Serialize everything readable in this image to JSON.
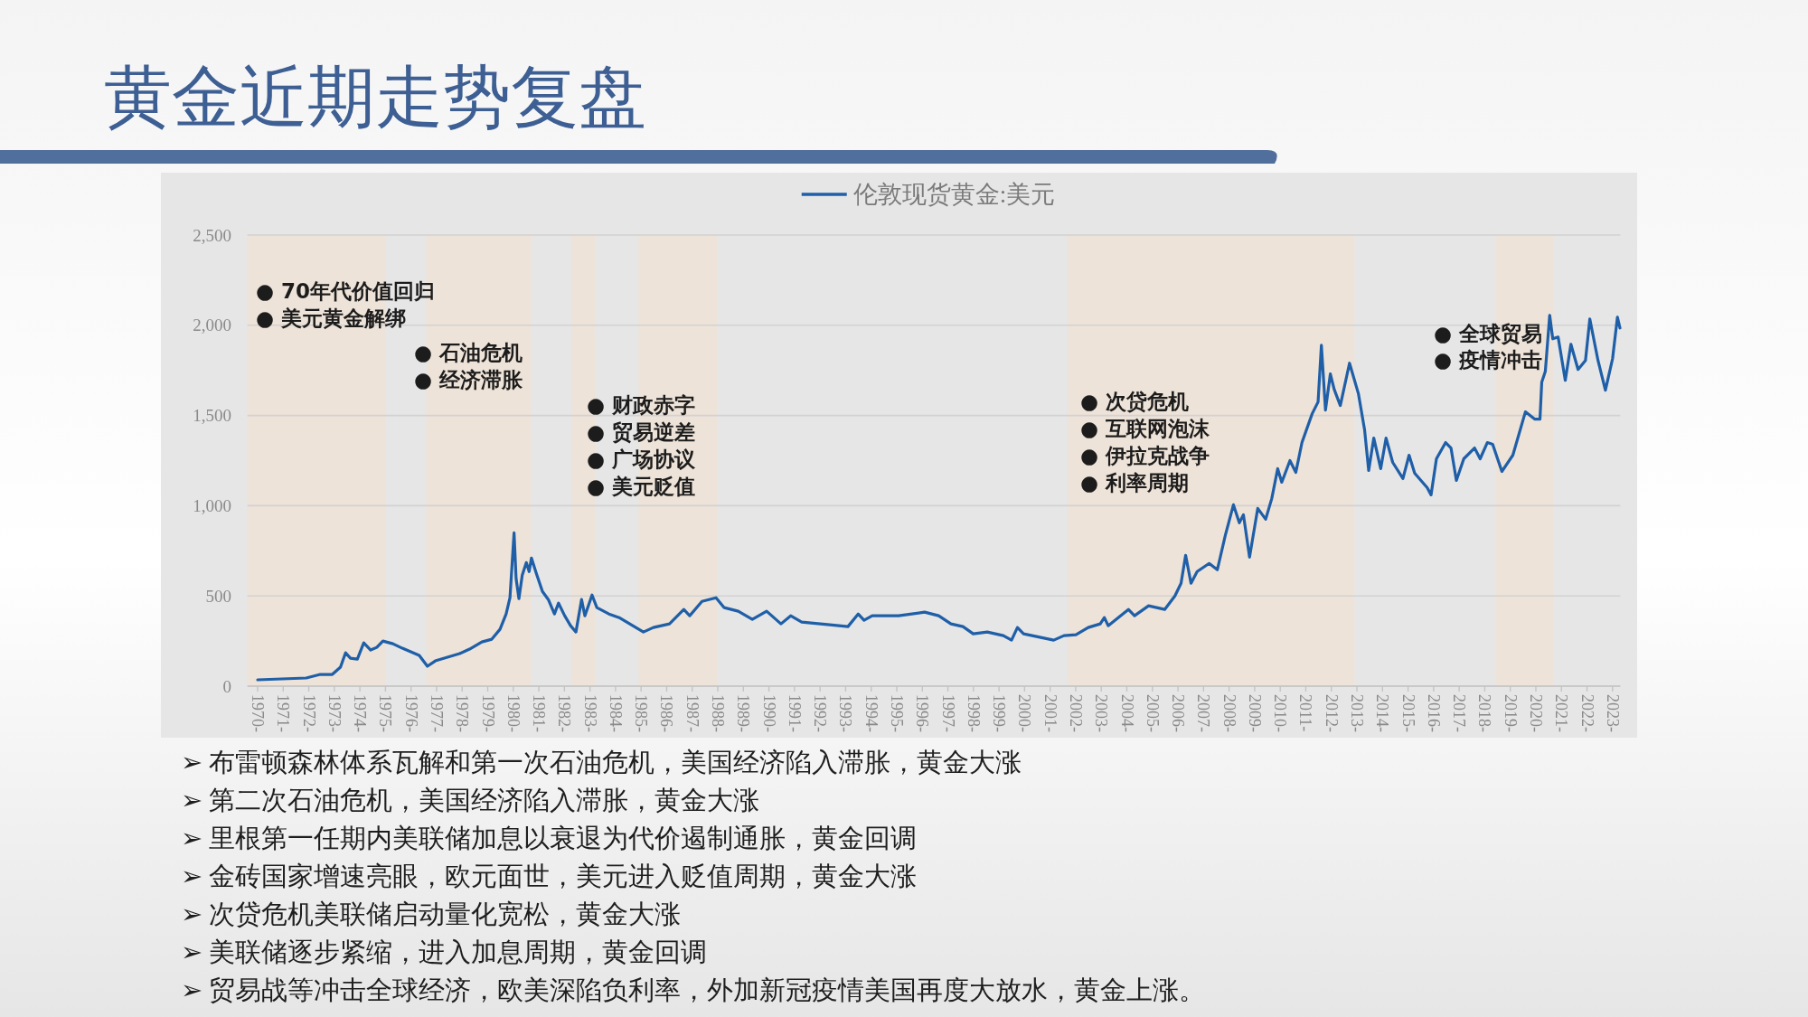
{
  "chart_data": {
    "type": "line",
    "title": "黄金近期走势复盘",
    "legend": "top",
    "grid": "y",
    "line_style": "solid",
    "xlim": [
      1969.6,
      2023.3
    ],
    "ylim": [
      0,
      2500
    ],
    "xticks": [
      {
        "value": 1970,
        "label": "1970-"
      },
      {
        "value": 1971,
        "label": "1971-"
      },
      {
        "value": 1972,
        "label": "1972-"
      },
      {
        "value": 1973,
        "label": "1973-"
      },
      {
        "value": 1974,
        "label": "1974-"
      },
      {
        "value": 1975,
        "label": "1975-"
      },
      {
        "value": 1976,
        "label": "1976-"
      },
      {
        "value": 1977,
        "label": "1977-"
      },
      {
        "value": 1978,
        "label": "1978-"
      },
      {
        "value": 1979,
        "label": "1979-"
      },
      {
        "value": 1980,
        "label": "1980-"
      },
      {
        "value": 1981,
        "label": "1981-"
      },
      {
        "value": 1982,
        "label": "1982-"
      },
      {
        "value": 1983,
        "label": "1983-"
      },
      {
        "value": 1984,
        "label": "1984-"
      },
      {
        "value": 1985,
        "label": "1985-"
      },
      {
        "value": 1986,
        "label": "1986-"
      },
      {
        "value": 1987,
        "label": "1987-"
      },
      {
        "value": 1988,
        "label": "1988-"
      },
      {
        "value": 1989,
        "label": "1989-"
      },
      {
        "value": 1990,
        "label": "1990-"
      },
      {
        "value": 1991,
        "label": "1991-"
      },
      {
        "value": 1992,
        "label": "1992-"
      },
      {
        "value": 1993,
        "label": "1993-"
      },
      {
        "value": 1994,
        "label": "1994-"
      },
      {
        "value": 1995,
        "label": "1995-"
      },
      {
        "value": 1996,
        "label": "1996-"
      },
      {
        "value": 1997,
        "label": "1997-"
      },
      {
        "value": 1998,
        "label": "1998-"
      },
      {
        "value": 1999,
        "label": "1999-"
      },
      {
        "value": 2000,
        "label": "2000-"
      },
      {
        "value": 2001,
        "label": "2001-"
      },
      {
        "value": 2002,
        "label": "2002-"
      },
      {
        "value": 2003,
        "label": "2003-"
      },
      {
        "value": 2004,
        "label": "2004-"
      },
      {
        "value": 2005,
        "label": "2005-"
      },
      {
        "value": 2006,
        "label": "2006-"
      },
      {
        "value": 2007,
        "label": "2007-"
      },
      {
        "value": 2008,
        "label": "2008-"
      },
      {
        "value": 2009,
        "label": "2009-"
      },
      {
        "value": 2010,
        "label": "2010-"
      },
      {
        "value": 2011,
        "label": "2011-"
      },
      {
        "value": 2012,
        "label": "2012-"
      },
      {
        "value": 2013,
        "label": "2013-"
      },
      {
        "value": 2014,
        "label": "2014-"
      },
      {
        "value": 2015,
        "label": "2015-"
      },
      {
        "value": 2016,
        "label": "2016-"
      },
      {
        "value": 2017,
        "label": "2017-"
      },
      {
        "value": 2018,
        "label": "2018-"
      },
      {
        "value": 2019,
        "label": "2019-"
      },
      {
        "value": 2020,
        "label": "2020-"
      },
      {
        "value": 2021,
        "label": "2021-"
      },
      {
        "value": 2022,
        "label": "2022-"
      },
      {
        "value": 2023,
        "label": "2023-"
      }
    ],
    "yticks": [
      0,
      500,
      {
        "value": 1000,
        "label": "1,000"
      },
      {
        "value": 1500,
        "label": "1,500"
      },
      {
        "value": 2000,
        "label": "2,000"
      },
      {
        "value": 2500,
        "label": "2,500"
      }
    ],
    "x": [
      1970.0,
      1971.9,
      1972.45,
      1972.92,
      1973.24,
      1973.44,
      1973.63,
      1973.9,
      1974.15,
      1974.42,
      1974.66,
      1974.9,
      1975.29,
      1975.66,
      1976.32,
      1976.64,
      1976.95,
      1977.9,
      1978.29,
      1978.77,
      1979.16,
      1979.48,
      1979.72,
      1979.87,
      1980.03,
      1980.11,
      1980.22,
      1980.35,
      1980.51,
      1980.62,
      1980.71,
      1980.9,
      1981.14,
      1981.37,
      1981.61,
      1981.77,
      1982.01,
      1982.24,
      1982.45,
      1982.67,
      1982.8,
      1983.08,
      1983.27,
      1983.74,
      1984.14,
      1985.09,
      1985.48,
      1986.11,
      1986.67,
      1986.9,
      1987.38,
      1987.93,
      1988.25,
      1988.8,
      1989.35,
      1989.91,
      1990.47,
      1990.85,
      1991.28,
      1992.38,
      1993.09,
      1993.49,
      1993.72,
      1994.04,
      1995.07,
      1996.09,
      1996.64,
      1997.12,
      1997.59,
      1997.99,
      1998.54,
      1999.17,
      1999.49,
      1999.72,
      1999.96,
      2001.14,
      2001.54,
      2002.01,
      2002.49,
      2002.96,
      2003.12,
      2003.27,
      2004.06,
      2004.3,
      2004.85,
      2005.48,
      2005.88,
      2006.12,
      2006.3,
      2006.51,
      2006.75,
      2007.22,
      2007.54,
      2007.85,
      2008.17,
      2008.4,
      2008.56,
      2008.8,
      2009.12,
      2009.43,
      2009.67,
      2009.9,
      2010.06,
      2010.38,
      2010.61,
      2010.85,
      2011.25,
      2011.48,
      2011.61,
      2011.77,
      2011.96,
      2012.11,
      2012.35,
      2012.71,
      2013.06,
      2013.3,
      2013.46,
      2013.66,
      2013.93,
      2014.14,
      2014.4,
      2014.8,
      2015.04,
      2015.26,
      2015.75,
      2015.9,
      2016.11,
      2016.47,
      2016.68,
      2016.89,
      2017.18,
      2017.6,
      2017.82,
      2018.1,
      2018.31,
      2018.67,
      2019.1,
      2019.59,
      2019.95,
      2020.16,
      2020.23,
      2020.37,
      2020.54,
      2020.66,
      2020.87,
      2021.15,
      2021.37,
      2021.65,
      2021.94,
      2022.11,
      2022.43,
      2022.72,
      2023.0,
      2023.19,
      2023.29
    ],
    "series": [
      {
        "name": "伦敦现货黄金:美元",
        "color": "#1f5fa8",
        "values": [
          35,
          45,
          65,
          65,
          105,
          185,
          155,
          150,
          240,
          200,
          215,
          250,
          235,
          210,
          170,
          110,
          140,
          180,
          205,
          245,
          260,
          315,
          400,
          490,
          850,
          595,
          485,
          615,
          685,
          635,
          710,
          625,
          525,
          480,
          400,
          460,
          390,
          335,
          300,
          480,
          390,
          505,
          435,
          400,
          380,
          300,
          325,
          345,
          425,
          390,
          470,
          490,
          435,
          415,
          370,
          415,
          345,
          390,
          355,
          340,
          330,
          400,
          365,
          390,
          390,
          410,
          390,
          345,
          330,
          290,
          300,
          280,
          255,
          325,
          290,
          255,
          280,
          285,
          325,
          345,
          380,
          335,
          425,
          390,
          445,
          425,
          500,
          570,
          725,
          570,
          635,
          680,
          645,
          835,
          1005,
          905,
          950,
          715,
          985,
          925,
          1040,
          1205,
          1130,
          1250,
          1185,
          1350,
          1510,
          1575,
          1890,
          1530,
          1730,
          1645,
          1555,
          1790,
          1620,
          1420,
          1195,
          1375,
          1205,
          1375,
          1240,
          1150,
          1280,
          1180,
          1100,
          1060,
          1260,
          1350,
          1320,
          1140,
          1260,
          1320,
          1260,
          1350,
          1340,
          1190,
          1280,
          1520,
          1480,
          1480,
          1685,
          1745,
          2055,
          1925,
          1935,
          1695,
          1895,
          1755,
          1805,
          2035,
          1805,
          1640,
          1815,
          2045,
          1985
        ]
      }
    ],
    "bands": [
      {
        "axis": "x",
        "from": 1969.6,
        "to": 1975.0,
        "color": "#eee3d8"
      },
      {
        "axis": "x",
        "from": 1976.6,
        "to": 1980.7,
        "color": "#eee3d8"
      },
      {
        "axis": "x",
        "from": 1982.3,
        "to": 1983.2,
        "color": "#eee3d8"
      },
      {
        "axis": "x",
        "from": 1984.9,
        "to": 1988.0,
        "color": "#eee3d8"
      },
      {
        "axis": "x",
        "from": 2001.7,
        "to": 2012.9,
        "color": "#eee3d8"
      },
      {
        "axis": "x",
        "from": 2018.4,
        "to": 2020.7,
        "color": "#eee3d8"
      }
    ],
    "annotations": [
      "● 70年代价值回归",
      "● 美元黄金解绑",
      "● 石油危机",
      "● 经济滞胀",
      "● 财政赤字",
      "● 贸易逆差",
      "● 广场协议",
      "● 美元贬值",
      "● 次贷危机",
      "● 互联网泡沫",
      "● 伊拉克战争",
      "● 利率周期",
      "● 全球贸易",
      "● 疫情冲击",
      "➢ 布雷顿森林体系瓦解和第一次石油危机，美国经济陷入滞胀，黄金大涨",
      "➢ 第二次石油危机，美国经济陷入滞胀，黄金大涨",
      "➢ 里根第一任期内美联储加息以衰退为代价遏制通胀，黄金回调",
      "➢ 金砖国家增速亮眼，欧元面世，美元进入贬值周期，黄金大涨",
      "➢ 次贷危机美联储启动量化宽松，黄金大涨",
      "➢ 美联储逐步紧缩，进入加息周期，黄金回调",
      "➢ 贸易战等冲击全球经济，欧美深陷负利率，外加新冠疫情美国再度大放水，黄金上涨。"
    ]
  }
}
